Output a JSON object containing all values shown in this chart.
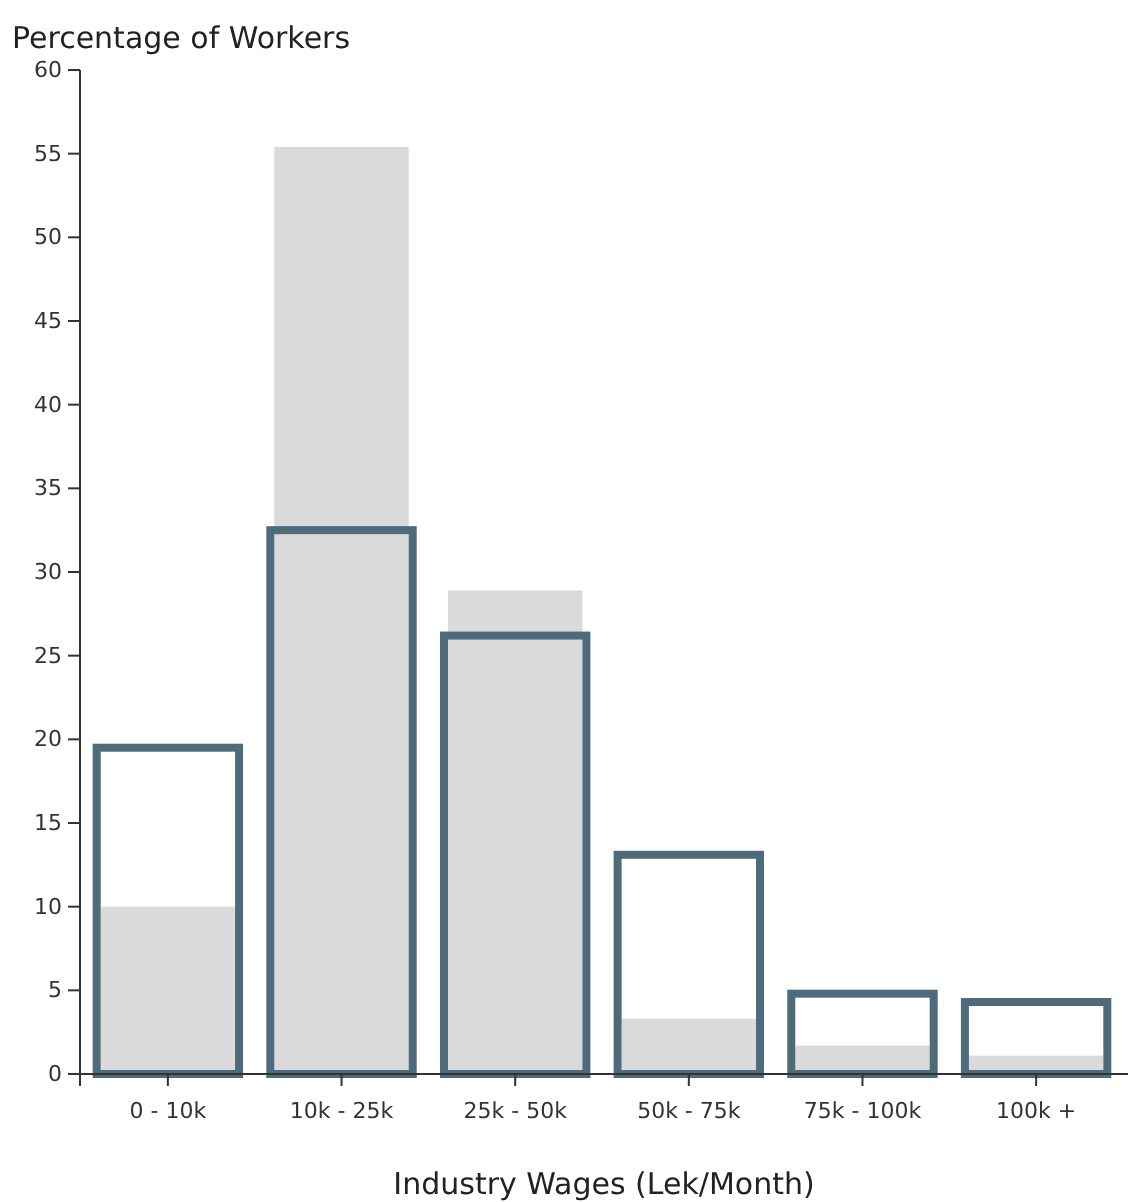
{
  "chart_data": {
    "type": "bar",
    "ylabel": "Percentage of Workers",
    "xlabel": "Industry Wages (Lek/Month)",
    "categories": [
      "0 - 10k",
      "10k - 25k",
      "25k - 50k",
      "50k - 75k",
      "75k - 100k",
      "100k +"
    ],
    "series": [
      {
        "color": "#dadada",
        "values": [
          10,
          55.4,
          28.9,
          3.3,
          1.7,
          1.1
        ]
      },
      {
        "color": "#4e6b7c",
        "values": [
          19.5,
          32.5,
          26.2,
          13.1,
          4.8,
          4.3
        ]
      }
    ],
    "ylim": [
      0,
      60
    ],
    "yticks": [
      0,
      5,
      10,
      15,
      20,
      25,
      30,
      35,
      40,
      45,
      50,
      55,
      60
    ],
    "grid": false
  }
}
